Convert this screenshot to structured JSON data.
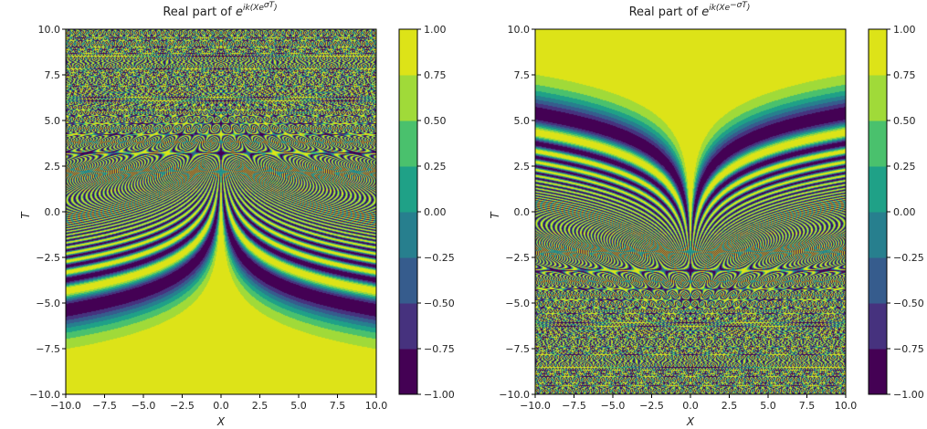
{
  "chart_data": [
    {
      "type": "heatmap",
      "subtype": "filled-contour",
      "title": "Real part of ",
      "title_math": "e",
      "title_exponent": "ik(Xe",
      "title_exponent_sup": "σT",
      "title_exponent_close": ")",
      "xlabel": "X",
      "ylabel": "T",
      "xlim": [
        -10.0,
        10.0
      ],
      "ylim": [
        -10.0,
        10.0
      ],
      "x_ticks": [
        "−10.0",
        "−7.5",
        "−5.0",
        "−2.5",
        "0.0",
        "2.5",
        "5.0",
        "7.5",
        "10.0"
      ],
      "y_ticks": [
        "−10.0",
        "−7.5",
        "−5.0",
        "−2.5",
        "0.0",
        "2.5",
        "5.0",
        "7.5",
        "10.0"
      ],
      "x_tick_values": [
        -10,
        -7.5,
        -5,
        -2.5,
        0,
        2.5,
        5,
        7.5,
        10
      ],
      "y_tick_values": [
        -10,
        -7.5,
        -5,
        -2.5,
        0,
        2.5,
        5,
        7.5,
        10
      ],
      "function": "cos(k * X * exp(sigma * T))",
      "sign": 1,
      "colorbar": {
        "levels": [
          -1.0,
          -0.75,
          -0.5,
          -0.25,
          0.0,
          0.25,
          0.5,
          0.75,
          1.0
        ],
        "tick_labels": [
          "−1.00",
          "−0.75",
          "−0.50",
          "−0.25",
          "0.00",
          "0.25",
          "0.50",
          "0.75",
          "1.00"
        ],
        "colors": [
          "#440154",
          "#46327e",
          "#365c8d",
          "#277f8e",
          "#1fa187",
          "#4ac16d",
          "#a0da39",
          "#dde318"
        ]
      }
    },
    {
      "type": "heatmap",
      "subtype": "filled-contour",
      "title": "Real part of ",
      "title_math": "e",
      "title_exponent": "ik(Xe",
      "title_exponent_sup": "−σT",
      "title_exponent_close": ")",
      "xlabel": "X",
      "ylabel": "T",
      "xlim": [
        -10.0,
        10.0
      ],
      "ylim": [
        -10.0,
        10.0
      ],
      "x_ticks": [
        "−10.0",
        "−7.5",
        "−5.0",
        "−2.5",
        "0.0",
        "2.5",
        "5.0",
        "7.5",
        "10.0"
      ],
      "y_ticks": [
        "−10.0",
        "−7.5",
        "−5.0",
        "−2.5",
        "0.0",
        "2.5",
        "5.0",
        "7.5",
        "10.0"
      ],
      "x_tick_values": [
        -10,
        -7.5,
        -5,
        -2.5,
        0,
        2.5,
        5,
        7.5,
        10
      ],
      "y_tick_values": [
        -10,
        -7.5,
        -5,
        -2.5,
        0,
        2.5,
        5,
        7.5,
        10
      ],
      "function": "cos(k * X * exp(-sigma * T))",
      "sign": -1,
      "colorbar": {
        "levels": [
          -1.0,
          -0.75,
          -0.5,
          -0.25,
          0.0,
          0.25,
          0.5,
          0.75,
          1.0
        ],
        "tick_labels": [
          "−1.00",
          "−0.75",
          "−0.50",
          "−0.25",
          "0.00",
          "0.25",
          "0.50",
          "0.75",
          "1.00"
        ],
        "colors": [
          "#440154",
          "#46327e",
          "#365c8d",
          "#277f8e",
          "#1fa187",
          "#4ac16d",
          "#a0da39",
          "#dde318"
        ]
      }
    }
  ]
}
